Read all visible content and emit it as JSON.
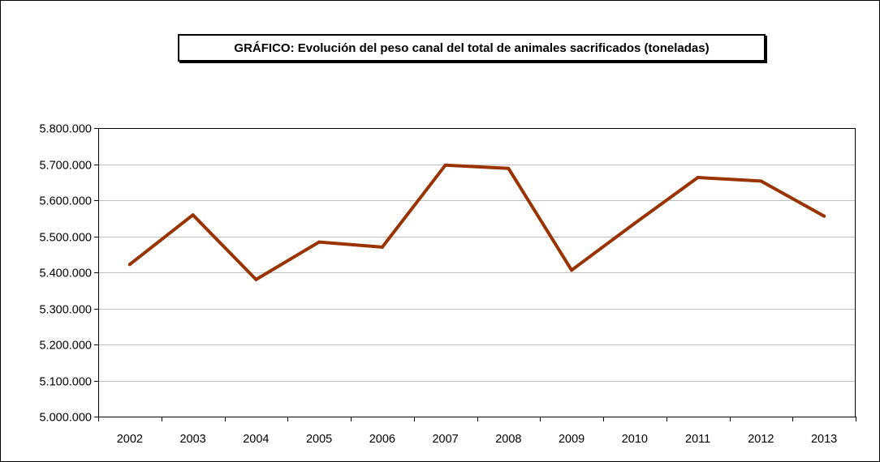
{
  "chart_data": {
    "type": "line",
    "title": "GRÁFICO: Evolución del peso canal del total de animales sacrificados (toneladas)",
    "xlabel": "",
    "ylabel": "",
    "categories": [
      "2002",
      "2003",
      "2004",
      "2005",
      "2006",
      "2007",
      "2008",
      "2009",
      "2010",
      "2011",
      "2012",
      "2013"
    ],
    "series": [
      {
        "name": "",
        "color": "#993300",
        "values": [
          5422000,
          5559000,
          5380000,
          5484000,
          5470000,
          5697000,
          5688000,
          5406000,
          5536000,
          5663000,
          5653000,
          5556000
        ]
      }
    ],
    "ylim": [
      5000000,
      5800000
    ],
    "yticks": [
      5000000,
      5100000,
      5200000,
      5300000,
      5400000,
      5500000,
      5600000,
      5700000,
      5800000
    ],
    "ytick_labels": [
      "5.000.000",
      "5.100.000",
      "5.200.000",
      "5.300.000",
      "5.400.000",
      "5.500.000",
      "5.600.000",
      "5.700.000",
      "5.800.000"
    ],
    "grid": "horizontal",
    "legend": "none",
    "colors": {
      "line": "#993300",
      "grid": "#c0c0c0",
      "axis": "#000000"
    }
  }
}
